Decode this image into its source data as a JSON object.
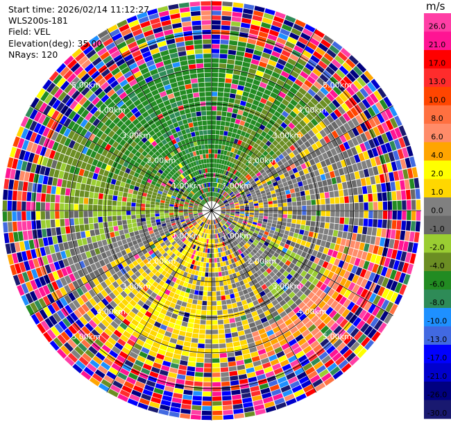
{
  "header": {
    "start_time": "Start time: 2026/02/14 11:12:27",
    "instrument": "WLS200s-181",
    "field": "Field: VEL",
    "elevation": "Elevation(deg): 35.00",
    "nrays": "NRays: 120"
  },
  "chart_data": {
    "type": "ppi_polar_heatmap",
    "field": "VEL",
    "units": "m/s",
    "n_rays": 120,
    "elevation_deg": 35.0,
    "range_rings_km": [
      1.0,
      2.0,
      3.0,
      4.0,
      5.0
    ],
    "range_ring_labels": [
      "1.00km",
      "2.00km",
      "3.00km",
      "4.00km",
      "5.00km"
    ],
    "max_range_km": 5.9,
    "colorbar": {
      "unit_label": "m/s",
      "ticks": [
        "26.0",
        "21.0",
        "17.0",
        "13.0",
        "10.0",
        "8.0",
        "6.0",
        "4.0",
        "2.0",
        "1.0",
        "0.0",
        "-1.0",
        "-2.0",
        "-4.0",
        "-6.0",
        "-8.0",
        "-10.0",
        "-13.0",
        "-17.0",
        "-21.0",
        "-26.0",
        "-30.0"
      ],
      "bins": [
        {
          "range": [
            26,
            30
          ],
          "color": "#ff3ea5"
        },
        {
          "range": [
            21,
            26
          ],
          "color": "#ff1493"
        },
        {
          "range": [
            17,
            21
          ],
          "color": "#ff0000"
        },
        {
          "range": [
            13,
            17
          ],
          "color": "#ff2c2c"
        },
        {
          "range": [
            10,
            13
          ],
          "color": "#ff4500"
        },
        {
          "range": [
            8,
            10
          ],
          "color": "#ff7040"
        },
        {
          "range": [
            6,
            8
          ],
          "color": "#ff8c69"
        },
        {
          "range": [
            4,
            6
          ],
          "color": "#ffa500"
        },
        {
          "range": [
            2,
            4
          ],
          "color": "#ffff00"
        },
        {
          "range": [
            1,
            2
          ],
          "color": "#ffd700"
        },
        {
          "range": [
            0,
            1
          ],
          "color": "#808080"
        },
        {
          "range": [
            -1,
            0
          ],
          "color": "#696969"
        },
        {
          "range": [
            -2,
            -1
          ],
          "color": "#9acd32"
        },
        {
          "range": [
            -4,
            -2
          ],
          "color": "#6b8e23"
        },
        {
          "range": [
            -6,
            -4
          ],
          "color": "#228b22"
        },
        {
          "range": [
            -8,
            -6
          ],
          "color": "#2e8b57"
        },
        {
          "range": [
            -10,
            -8
          ],
          "color": "#1e90ff"
        },
        {
          "range": [
            -13,
            -10
          ],
          "color": "#4169e1"
        },
        {
          "range": [
            -17,
            -13
          ],
          "color": "#0000ff"
        },
        {
          "range": [
            -21,
            -17
          ],
          "color": "#0000cd"
        },
        {
          "range": [
            -26,
            -21
          ],
          "color": "#000080"
        },
        {
          "range": [
            -30,
            -26
          ],
          "color": "#191970"
        }
      ]
    },
    "sector_pattern": [
      {
        "azimuth_deg": [
          0,
          45
        ],
        "inner_km": [
          0,
          4.5
        ],
        "dominant_vel": [
          -6,
          -1
        ],
        "note": "green near north"
      },
      {
        "azimuth_deg": [
          45,
          120
        ],
        "inner_km": [
          0,
          4.5
        ],
        "dominant_vel": [
          -1,
          1
        ],
        "note": "gray east-north-east"
      },
      {
        "azimuth_deg": [
          120,
          220
        ],
        "inner_km": [
          0,
          4.8
        ],
        "dominant_vel": [
          1,
          8
        ],
        "note": "yellow / orange south"
      },
      {
        "azimuth_deg": [
          220,
          300
        ],
        "inner_km": [
          0,
          4.5
        ],
        "dominant_vel": [
          -2,
          4
        ],
        "note": "mixed west"
      },
      {
        "azimuth_deg": [
          300,
          360
        ],
        "inner_km": [
          0,
          4.5
        ],
        "dominant_vel": [
          -8,
          -2
        ],
        "note": "green north-west"
      },
      {
        "azimuth_deg": [
          0,
          360
        ],
        "inner_km": [
          4.5,
          5.9
        ],
        "dominant_vel": "noisy",
        "note": "outer gates noise"
      }
    ]
  }
}
